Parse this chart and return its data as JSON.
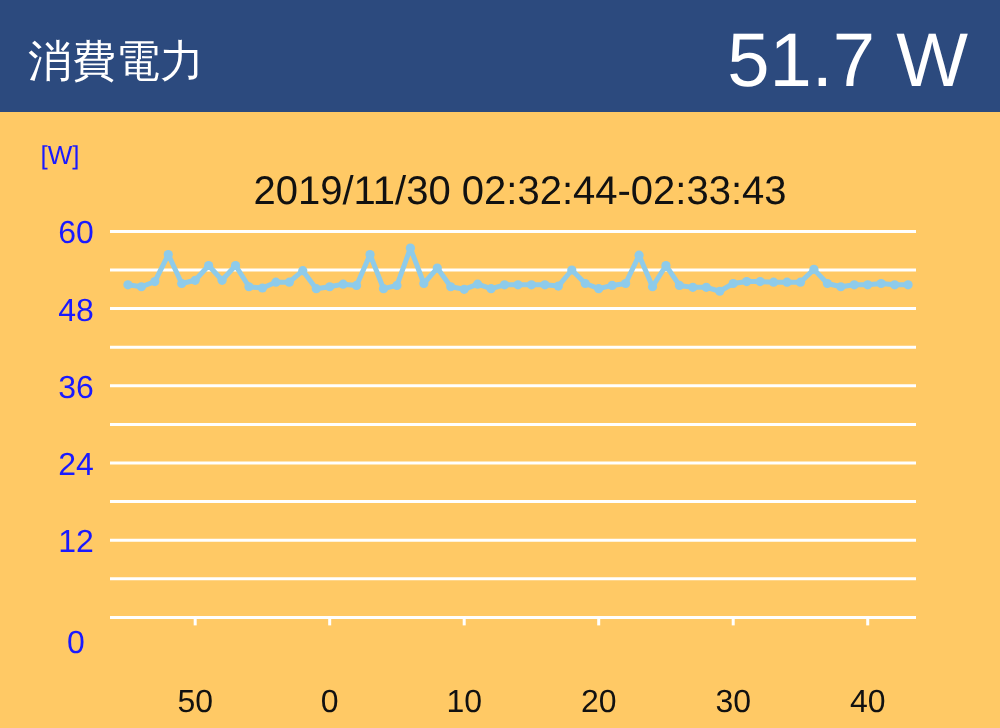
{
  "chart_data": {
    "type": "line",
    "title": "消費電力",
    "subtitle": "2019/11/30 02:32:44-02:33:43",
    "ylabel": "[W]",
    "annotations": [
      "51.7 W"
    ],
    "categories": [
      null,
      null,
      null,
      null,
      null,
      "50",
      null,
      null,
      null,
      null,
      null,
      null,
      null,
      null,
      null,
      "0",
      null,
      null,
      null,
      null,
      null,
      null,
      null,
      null,
      null,
      "10",
      null,
      null,
      null,
      null,
      null,
      null,
      null,
      null,
      null,
      "20",
      null,
      null,
      null,
      null,
      null,
      null,
      null,
      null,
      null,
      "30",
      null,
      null,
      null,
      null,
      null,
      null,
      null,
      null,
      null,
      "40",
      null,
      null,
      null
    ],
    "series": [
      {
        "color": "#8ecbea",
        "values": [
          51.7,
          51.4,
          52.2,
          56.4,
          51.9,
          52.4,
          54.7,
          52.4,
          54.7,
          51.4,
          51.2,
          52.1,
          52.1,
          53.9,
          51.1,
          51.4,
          51.8,
          51.6,
          56.4,
          51.1,
          51.6,
          57.4,
          51.9,
          54.3,
          51.4,
          51.0,
          51.8,
          51.1,
          51.7,
          51.7,
          51.7,
          51.7,
          51.5,
          54.0,
          51.9,
          51.1,
          51.6,
          51.9,
          56.3,
          51.4,
          54.7,
          51.6,
          51.3,
          51.3,
          50.7,
          51.9,
          52.2,
          52.2,
          52.1,
          52.1,
          52.1,
          54.1,
          51.9,
          51.4,
          51.7,
          51.7,
          51.9,
          51.7,
          51.7
        ]
      }
    ],
    "ylim": [
      0,
      60
    ],
    "yticks": [
      0,
      {
        "value": 6,
        "label": null
      },
      12,
      {
        "value": 18,
        "label": null
      },
      24,
      {
        "value": 30,
        "label": null
      },
      36,
      {
        "value": 42,
        "label": null
      },
      48,
      {
        "value": 54,
        "label": null
      },
      60
    ],
    "grid": "y",
    "marker": "circle"
  }
}
